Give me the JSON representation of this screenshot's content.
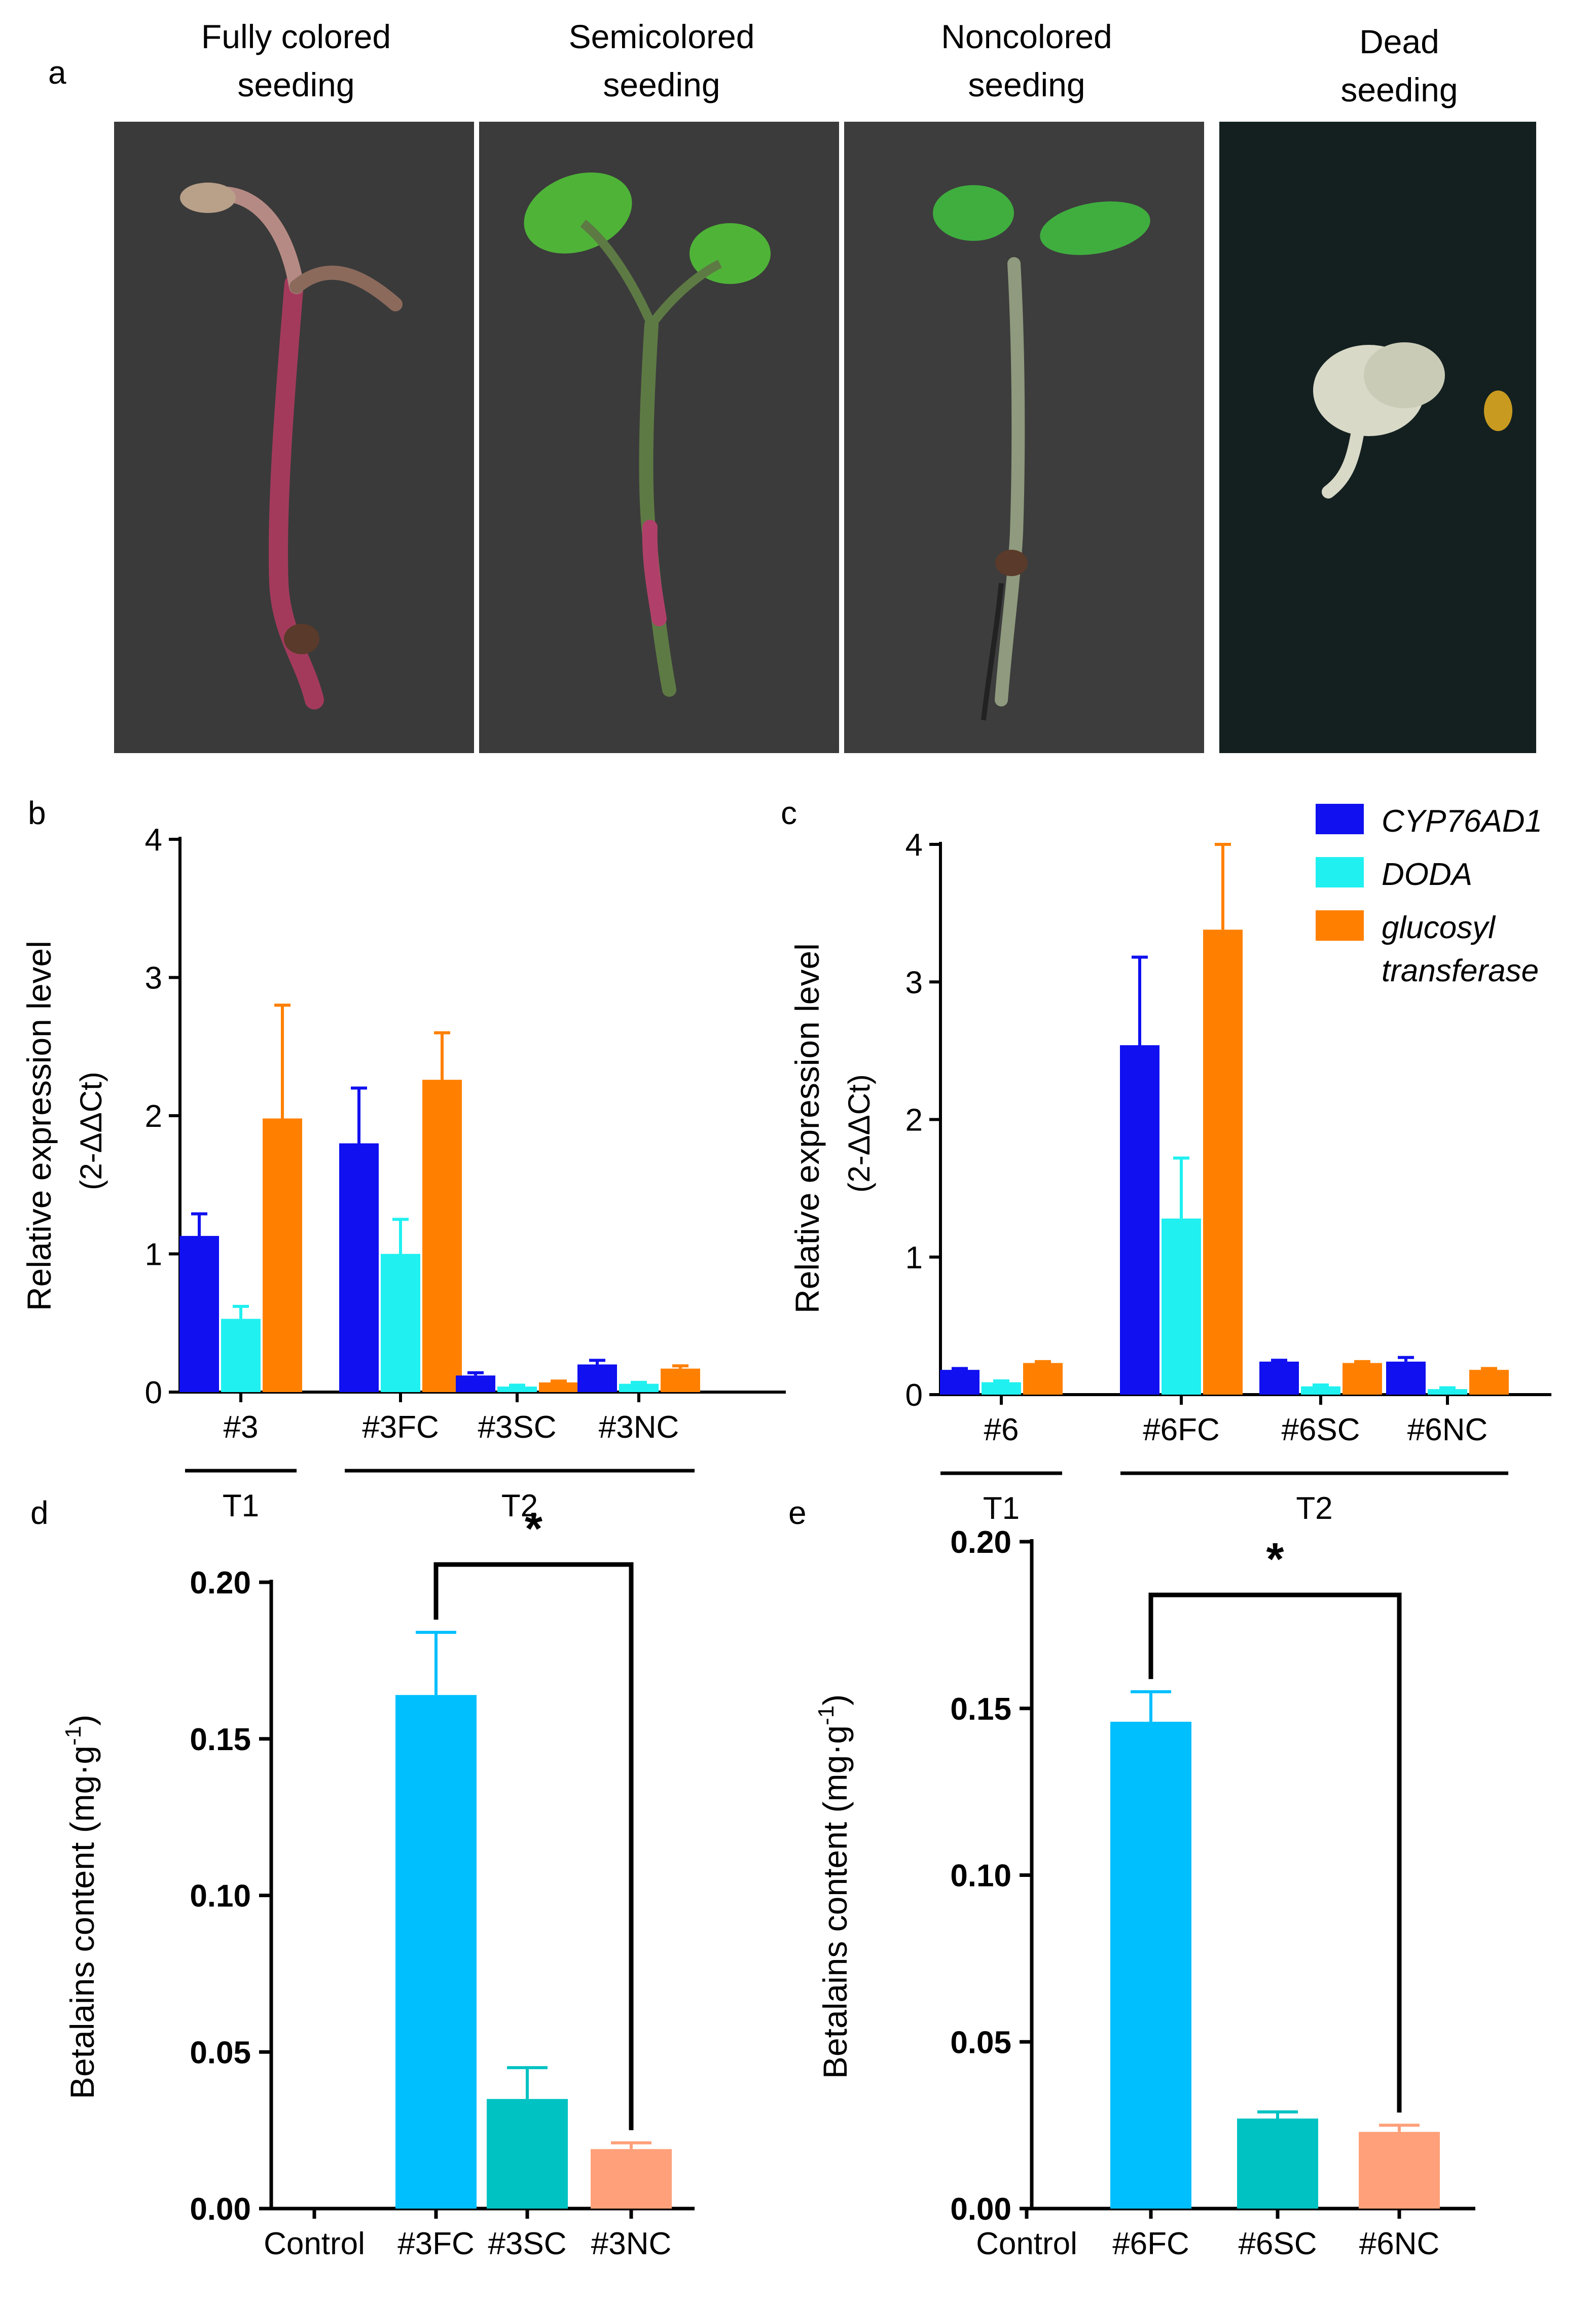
{
  "panel_a": {
    "letter": "a",
    "photos": [
      {
        "line1": "Fully colored",
        "line2": "seeding",
        "stem": "#a33a5c",
        "bg": "#3a3a3a",
        "leaf": "#b9a089"
      },
      {
        "line1": "Semicolored",
        "line2": "seeding",
        "stem": "#5e7a44",
        "bg": "#3b3b3b",
        "leaf": "#4fb338"
      },
      {
        "line1": "Noncolored",
        "line2": "seeding",
        "stem": "#8f9a7e",
        "bg": "#3d3d3d",
        "leaf": "#3fae3f"
      },
      {
        "line1": "Dead",
        "line2": "seeding",
        "stem": "#cfcfbf",
        "bg": "#142020",
        "leaf": "#d8d9c7"
      }
    ]
  },
  "legend": {
    "items": [
      {
        "label": "CYP76AD1",
        "color": "#1010f0"
      },
      {
        "label": "DODA",
        "color": "#20f0f0"
      },
      {
        "label": "glucosyl",
        "label2": "transferase",
        "color": "#ff8000"
      }
    ]
  },
  "chart_data": [
    {
      "panel": "b",
      "type": "bar",
      "ylabel": "Relative expression level",
      "ylabel_unit": "(2-ΔΔCt)",
      "ylim": [
        0,
        4
      ],
      "yticks": [
        "0",
        "1",
        "2",
        "3",
        "4"
      ],
      "categories": [
        "#3",
        "#3FC",
        "#3SC",
        "#3NC"
      ],
      "groups": [
        {
          "label": "T1",
          "span": [
            0,
            0
          ]
        },
        {
          "label": "T2",
          "span": [
            1,
            3
          ]
        }
      ],
      "series": [
        {
          "name": "CYP76AD1",
          "values": [
            1.13,
            1.8,
            0.12,
            0.2
          ],
          "errors": [
            0.16,
            0.4,
            0.02,
            0.03
          ]
        },
        {
          "name": "DODA",
          "values": [
            0.53,
            1.0,
            0.04,
            0.06
          ],
          "errors": [
            0.09,
            0.25,
            0.01,
            0.01
          ]
        },
        {
          "name": "glucosyl transferase",
          "values": [
            1.98,
            2.26,
            0.07,
            0.17
          ],
          "errors": [
            0.82,
            0.34,
            0.01,
            0.02
          ]
        }
      ]
    },
    {
      "panel": "c",
      "type": "bar",
      "ylabel": "Relative expression level",
      "ylabel_unit": "(2-ΔΔCt)",
      "ylim": [
        0,
        4
      ],
      "yticks": [
        "0",
        "1",
        "2",
        "3",
        "4"
      ],
      "categories": [
        "#6",
        "#6FC",
        "#6SC",
        "#6NC"
      ],
      "groups": [
        {
          "label": "T1",
          "span": [
            0,
            0
          ]
        },
        {
          "label": "T2",
          "span": [
            1,
            3
          ]
        }
      ],
      "series": [
        {
          "name": "CYP76AD1",
          "values": [
            0.18,
            2.54,
            0.24,
            0.24
          ],
          "errors": [
            0.01,
            0.64,
            0.01,
            0.03
          ]
        },
        {
          "name": "DODA",
          "values": [
            0.09,
            1.28,
            0.06,
            0.04
          ],
          "errors": [
            0.01,
            0.44,
            0.01,
            0.01
          ]
        },
        {
          "name": "glucosyl transferase",
          "values": [
            0.23,
            3.38,
            0.23,
            0.18
          ],
          "errors": [
            0.01,
            0.62,
            0.01,
            0.01
          ]
        }
      ]
    },
    {
      "panel": "d",
      "type": "bar",
      "ylabel": "Betalains content (mg·g",
      "ylabel_sup": "-1",
      "ylabel_close": ")",
      "ylim": [
        0,
        0.2
      ],
      "yticks": [
        "0.00",
        "0.05",
        "0.10",
        "0.15",
        "0.20"
      ],
      "categories": [
        "Control",
        "#3FC",
        "#3SC",
        "#3NC"
      ],
      "values": [
        0,
        0.164,
        0.035,
        0.019
      ],
      "errors": [
        0,
        0.02,
        0.01,
        0.002
      ],
      "colors": [
        "#00bfff",
        "#00bfff",
        "#00c2c2",
        "#ffa07a"
      ],
      "significance": {
        "label": "*",
        "from": 1,
        "to": 3
      }
    },
    {
      "panel": "e",
      "type": "bar",
      "ylabel": "Betalains content (mg·g",
      "ylabel_sup": "-1",
      "ylabel_close": ")",
      "ylim": [
        0,
        0.2
      ],
      "yticks": [
        "0.00",
        "0.05",
        "0.10",
        "0.15",
        "0.20"
      ],
      "categories": [
        "Control",
        "#6FC",
        "#6SC",
        "#6NC"
      ],
      "values": [
        0,
        0.146,
        0.027,
        0.023
      ],
      "errors": [
        0,
        0.009,
        0.002,
        0.002
      ],
      "colors": [
        "#00bfff",
        "#00bfff",
        "#00c2c2",
        "#ffa07a"
      ],
      "significance": {
        "label": "*",
        "from": 1,
        "to": 3
      }
    }
  ]
}
